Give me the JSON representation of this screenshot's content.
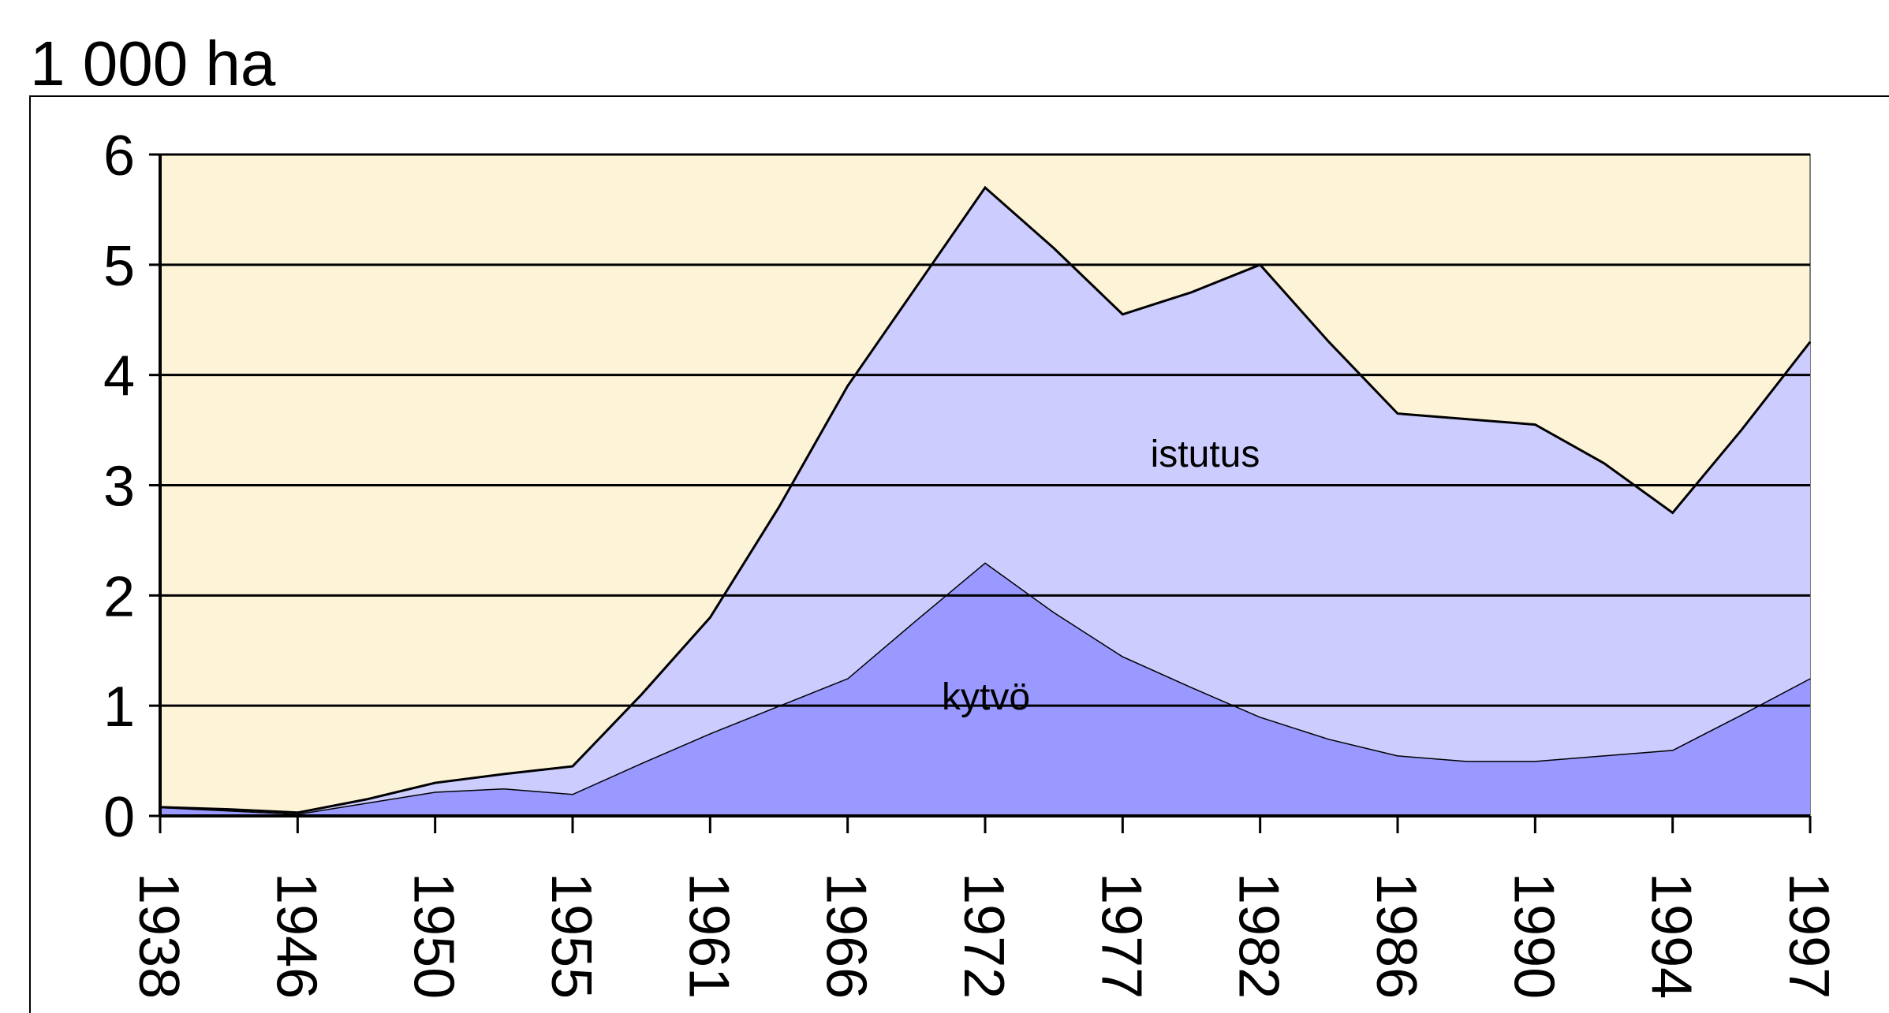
{
  "chart_data": {
    "type": "stacked_area",
    "title": "1 000 ha",
    "categories": [
      "1938",
      null,
      "1946",
      null,
      "1950",
      null,
      "1955",
      null,
      "1961",
      null,
      "1966",
      null,
      "1972",
      null,
      "1977",
      null,
      "1982",
      null,
      "1986",
      null,
      "1990",
      null,
      "1994",
      null,
      "1997"
    ],
    "series": [
      {
        "name": "kytvö",
        "color": "#9999ff",
        "values": [
          0.08,
          0.05,
          0.02,
          0.12,
          0.22,
          0.25,
          0.2,
          0.48,
          0.75,
          1.0,
          1.25,
          1.78,
          2.3,
          1.85,
          1.45,
          1.17,
          0.9,
          0.7,
          0.55,
          0.5,
          0.5,
          0.55,
          0.6,
          0.92,
          1.25
        ]
      },
      {
        "name": "istutus",
        "color": "#ccccff",
        "values": [
          0,
          0.01,
          0.01,
          0.03,
          0.08,
          0.13,
          0.25,
          0.62,
          1.05,
          1.8,
          2.65,
          3.02,
          3.4,
          3.3,
          3.1,
          3.58,
          4.1,
          3.6,
          3.1,
          3.1,
          3.05,
          2.65,
          2.15,
          2.58,
          3.05
        ]
      }
    ],
    "ylim": [
      0,
      6
    ],
    "yticks": [
      0,
      1,
      2,
      3,
      4,
      5,
      6
    ],
    "grid": true,
    "plot_background": "#fdf3d6"
  }
}
